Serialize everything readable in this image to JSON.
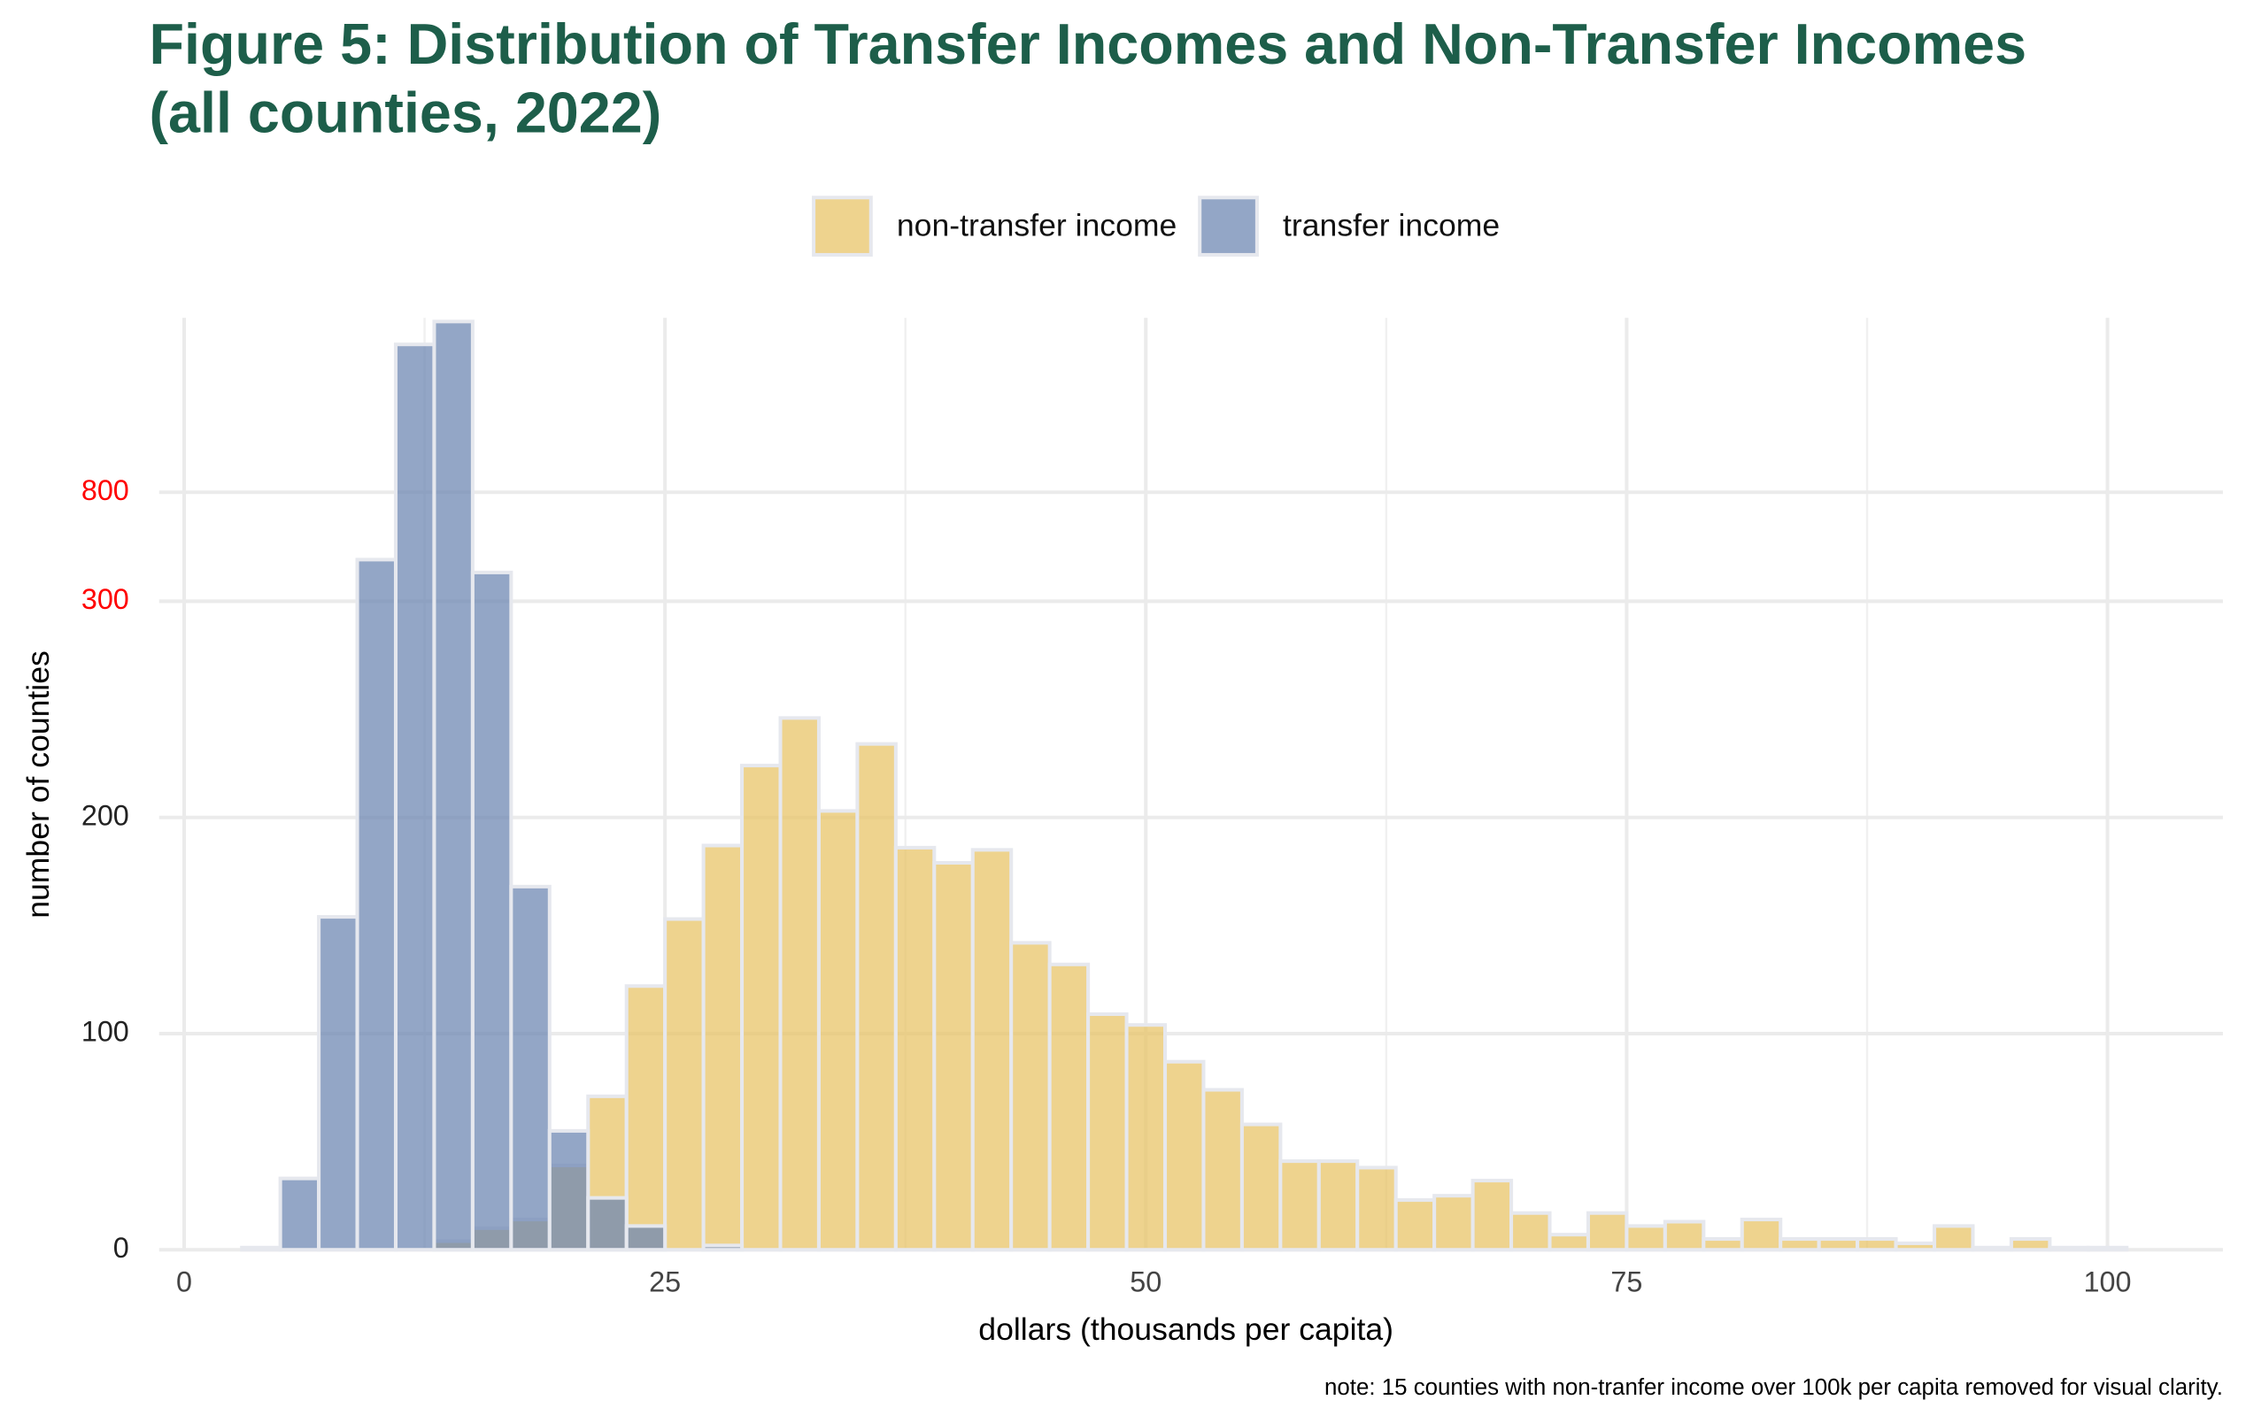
{
  "chart_data": {
    "type": "histogram",
    "title": "Figure 5: Distribution of Transfer Incomes and Non-Transfer Incomes",
    "subtitle": "(all counties, 2022)",
    "x_label": "dollars (thousands per capita)",
    "y_label": "number of counties",
    "note": "note: 15 counties with non-tranfer income over 100k per capita removed for visual clarity.",
    "xlim": [
      -1.3,
      106
    ],
    "xticks": [
      0,
      25,
      50,
      75,
      100
    ],
    "ylim": [
      0,
      1600
    ],
    "yticks": [
      0,
      100,
      200,
      300,
      800
    ],
    "y_break": 300,
    "y_break_color": "#ff0000",
    "grid": true,
    "legend": "top",
    "series": [
      {
        "name": "non-transfer income",
        "color": "#e8c468",
        "bins": [
          13,
          15,
          17,
          19,
          21,
          23,
          25,
          27,
          29,
          31,
          33,
          35,
          37,
          39,
          41,
          43,
          45,
          47,
          49,
          51,
          53,
          55,
          57,
          59,
          61,
          63,
          65,
          67,
          69,
          71,
          73,
          75,
          77,
          79,
          81,
          83,
          85,
          87,
          89,
          91,
          93,
          95,
          97,
          99,
          101
        ],
        "values": [
          4,
          10,
          14,
          39,
          71,
          122,
          153,
          187,
          224,
          246,
          203,
          234,
          186,
          179,
          185,
          142,
          132,
          109,
          104,
          87,
          74,
          58,
          41,
          41,
          38,
          23,
          25,
          32,
          17,
          7,
          17,
          11,
          13,
          5,
          14,
          5,
          5,
          5,
          3,
          11,
          1,
          5,
          1,
          1
        ]
      },
      {
        "name": "transfer income",
        "color": "#6f88b3",
        "bins": [
          3,
          5,
          7,
          9,
          11,
          13,
          15,
          17,
          19,
          21,
          23,
          25,
          27,
          29
        ],
        "values": [
          1,
          33,
          154,
          491,
          1478,
          1583,
          432,
          168,
          55,
          24,
          11,
          0,
          2
        ]
      }
    ]
  }
}
